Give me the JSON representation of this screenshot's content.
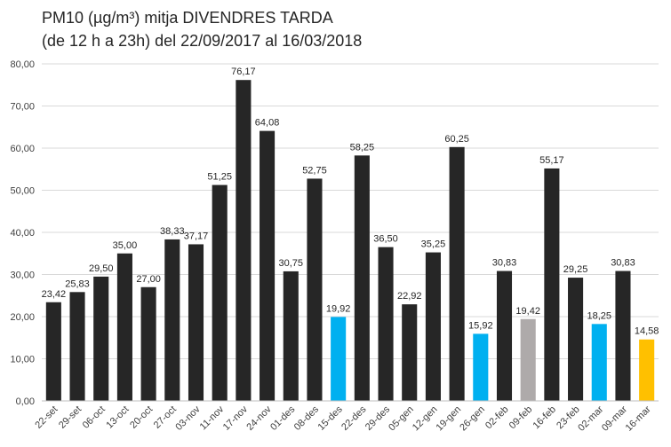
{
  "chart_data": {
    "type": "bar",
    "title_line1": "PM10 (µg/m³) mitja DIVENDRES TARDA",
    "title_line2": "(de 12 h a 23h) del 22/09/2017 al 16/03/2018",
    "xlabel": "",
    "ylabel": "",
    "ylim": [
      0,
      80
    ],
    "yticks": [
      "0,00",
      "10,00",
      "20,00",
      "30,00",
      "40,00",
      "50,00",
      "60,00",
      "70,00",
      "80,00"
    ],
    "grid": true,
    "legend": "none",
    "categories": [
      "22-set",
      "29-set",
      "06-oct",
      "13-oct",
      "20-oct",
      "27-oct",
      "03-nov",
      "11-nov",
      "17-nov",
      "24-nov",
      "01-des",
      "08-des",
      "15-des",
      "22-des",
      "29-des",
      "05-gen",
      "12-gen",
      "19-gen",
      "26-gen",
      "02-feb",
      "09-feb",
      "16-feb",
      "23-feb",
      "02-mar",
      "09-mar",
      "16-mar"
    ],
    "values": [
      23.42,
      25.83,
      29.5,
      35.0,
      27.0,
      38.33,
      37.17,
      51.25,
      76.17,
      64.08,
      30.75,
      52.75,
      19.92,
      58.25,
      36.5,
      22.92,
      35.25,
      60.25,
      15.92,
      30.83,
      19.42,
      55.17,
      29.25,
      18.25,
      30.83,
      14.58
    ],
    "value_labels": [
      "23,42",
      "25,83",
      "29,50",
      "35,00",
      "27,00",
      "38,33",
      "37,17",
      "51,25",
      "76,17",
      "64,08",
      "30,75",
      "52,75",
      "19,92",
      "58,25",
      "36,50",
      "22,92",
      "35,25",
      "60,25",
      "15,92",
      "30,83",
      "19,42",
      "55,17",
      "29,25",
      "18,25",
      "30,83",
      "14,58"
    ],
    "colors": [
      "#262626",
      "#262626",
      "#262626",
      "#262626",
      "#262626",
      "#262626",
      "#262626",
      "#262626",
      "#262626",
      "#262626",
      "#262626",
      "#262626",
      "#00b0f0",
      "#262626",
      "#262626",
      "#262626",
      "#262626",
      "#262626",
      "#00b0f0",
      "#262626",
      "#aeaaaa",
      "#262626",
      "#262626",
      "#00b0f0",
      "#262626",
      "#ffc000"
    ],
    "grid_color": "#d9d9d9"
  }
}
